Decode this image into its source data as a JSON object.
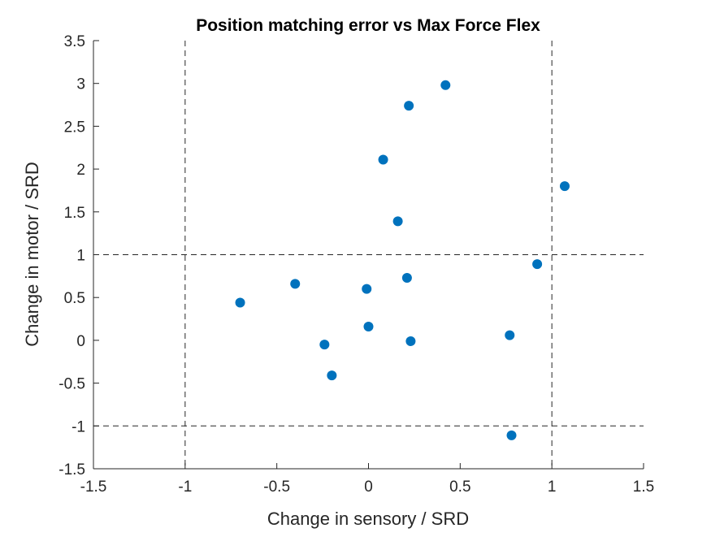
{
  "chart_data": {
    "type": "scatter",
    "title": "Position matching error vs Max Force Flex",
    "xlabel": "Change in sensory / SRD",
    "ylabel": "Change in motor / SRD",
    "xlim": [
      -1.5,
      1.5
    ],
    "ylim": [
      -1.5,
      3.5
    ],
    "xticks": [
      -1.5,
      -1,
      -0.5,
      0,
      0.5,
      1,
      1.5
    ],
    "yticks": [
      -1.5,
      -1,
      -0.5,
      0,
      0.5,
      1,
      1.5,
      2,
      2.5,
      3,
      3.5
    ],
    "xtick_labels": [
      "-1.5",
      "-1",
      "-0.5",
      "0",
      "0.5",
      "1",
      "1.5"
    ],
    "ytick_labels": [
      "-1.5",
      "-1",
      "-0.5",
      "0",
      "0.5",
      "1",
      "1.5",
      "2",
      "2.5",
      "3",
      "3.5"
    ],
    "grid": false,
    "box": "left-bottom axes only",
    "reference_lines": {
      "style": "dashed",
      "vertical_x": [
        -1,
        1
      ],
      "horizontal_y": [
        -1,
        1
      ]
    },
    "series": [
      {
        "points": [
          {
            "x": -0.7,
            "y": 0.44
          },
          {
            "x": -0.4,
            "y": 0.66
          },
          {
            "x": -0.24,
            "y": -0.05
          },
          {
            "x": -0.2,
            "y": -0.41
          },
          {
            "x": -0.01,
            "y": 0.6
          },
          {
            "x": 0.0,
            "y": 0.16
          },
          {
            "x": 0.08,
            "y": 2.11
          },
          {
            "x": 0.16,
            "y": 1.39
          },
          {
            "x": 0.21,
            "y": 0.73
          },
          {
            "x": 0.22,
            "y": 2.74
          },
          {
            "x": 0.23,
            "y": -0.01
          },
          {
            "x": 0.42,
            "y": 2.98
          },
          {
            "x": 0.77,
            "y": 0.06
          },
          {
            "x": 0.78,
            "y": -1.11
          },
          {
            "x": 0.92,
            "y": 0.89
          },
          {
            "x": 1.07,
            "y": 1.8
          }
        ]
      }
    ],
    "colors": {
      "marker": "#0072BD",
      "axis": "#262626",
      "reference_line": "#262626",
      "background": "#ffffff"
    }
  }
}
